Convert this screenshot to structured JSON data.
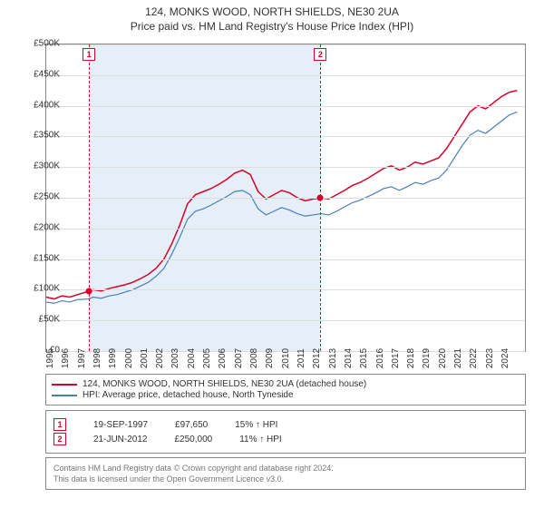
{
  "title_line1": "124, MONKS WOOD, NORTH SHIELDS, NE30 2UA",
  "title_line2": "Price paid vs. HM Land Registry's House Price Index (HPI)",
  "chart": {
    "type": "line",
    "background_color": "#ffffff",
    "shaded_band_color": "#e6eef7",
    "grid_color": "#dddddd",
    "border_color": "#888888",
    "x_years": [
      1995,
      1996,
      1997,
      1998,
      1999,
      2000,
      2001,
      2002,
      2003,
      2004,
      2005,
      2006,
      2007,
      2008,
      2009,
      2010,
      2011,
      2012,
      2013,
      2014,
      2015,
      2016,
      2017,
      2018,
      2019,
      2020,
      2021,
      2022,
      2023,
      2024
    ],
    "x_range": [
      1995,
      2025.5
    ],
    "ylim": [
      0,
      500000
    ],
    "ytick_step": 50000,
    "ytick_labels": [
      "£0",
      "£50K",
      "£100K",
      "£150K",
      "£200K",
      "£250K",
      "£300K",
      "£350K",
      "£400K",
      "£450K",
      "£500K"
    ],
    "label_fontsize": 10,
    "series": [
      {
        "name": "124, MONKS WOOD, NORTH SHIELDS, NE30 2UA (detached house)",
        "color": "#d4002a",
        "line_width": 1.5,
        "data": [
          [
            1995,
            88000
          ],
          [
            1995.5,
            85000
          ],
          [
            1996,
            90000
          ],
          [
            1996.5,
            88000
          ],
          [
            1997,
            92000
          ],
          [
            1997.7,
            97650
          ],
          [
            1998,
            100000
          ],
          [
            1998.5,
            98000
          ],
          [
            1999,
            102000
          ],
          [
            1999.5,
            105000
          ],
          [
            2000,
            108000
          ],
          [
            2000.5,
            112000
          ],
          [
            2001,
            118000
          ],
          [
            2001.5,
            125000
          ],
          [
            2002,
            135000
          ],
          [
            2002.5,
            150000
          ],
          [
            2003,
            175000
          ],
          [
            2003.5,
            205000
          ],
          [
            2004,
            240000
          ],
          [
            2004.5,
            255000
          ],
          [
            2005,
            260000
          ],
          [
            2005.5,
            265000
          ],
          [
            2006,
            272000
          ],
          [
            2006.5,
            280000
          ],
          [
            2007,
            290000
          ],
          [
            2007.5,
            295000
          ],
          [
            2008,
            288000
          ],
          [
            2008.5,
            260000
          ],
          [
            2009,
            248000
          ],
          [
            2009.5,
            255000
          ],
          [
            2010,
            262000
          ],
          [
            2010.5,
            258000
          ],
          [
            2011,
            250000
          ],
          [
            2011.5,
            245000
          ],
          [
            2012,
            248000
          ],
          [
            2012.5,
            250000
          ],
          [
            2013,
            248000
          ],
          [
            2013.5,
            255000
          ],
          [
            2014,
            262000
          ],
          [
            2014.5,
            270000
          ],
          [
            2015,
            275000
          ],
          [
            2015.5,
            282000
          ],
          [
            2016,
            290000
          ],
          [
            2016.5,
            298000
          ],
          [
            2017,
            302000
          ],
          [
            2017.5,
            295000
          ],
          [
            2018,
            300000
          ],
          [
            2018.5,
            308000
          ],
          [
            2019,
            305000
          ],
          [
            2019.5,
            310000
          ],
          [
            2020,
            315000
          ],
          [
            2020.5,
            330000
          ],
          [
            2021,
            350000
          ],
          [
            2021.5,
            370000
          ],
          [
            2022,
            390000
          ],
          [
            2022.5,
            400000
          ],
          [
            2023,
            395000
          ],
          [
            2023.5,
            405000
          ],
          [
            2024,
            415000
          ],
          [
            2024.5,
            422000
          ],
          [
            2025,
            425000
          ]
        ]
      },
      {
        "name": "HPI: Average price, detached house, North Tyneside",
        "color": "#4a7fb5",
        "line_width": 1.2,
        "data": [
          [
            1995,
            80000
          ],
          [
            1995.5,
            78000
          ],
          [
            1996,
            82000
          ],
          [
            1996.5,
            80000
          ],
          [
            1997,
            84000
          ],
          [
            1997.7,
            85000
          ],
          [
            1998,
            88000
          ],
          [
            1998.5,
            86000
          ],
          [
            1999,
            90000
          ],
          [
            1999.5,
            92000
          ],
          [
            2000,
            96000
          ],
          [
            2000.5,
            100000
          ],
          [
            2001,
            106000
          ],
          [
            2001.5,
            112000
          ],
          [
            2002,
            122000
          ],
          [
            2002.5,
            135000
          ],
          [
            2003,
            158000
          ],
          [
            2003.5,
            185000
          ],
          [
            2004,
            215000
          ],
          [
            2004.5,
            228000
          ],
          [
            2005,
            232000
          ],
          [
            2005.5,
            238000
          ],
          [
            2006,
            245000
          ],
          [
            2006.5,
            252000
          ],
          [
            2007,
            260000
          ],
          [
            2007.5,
            262000
          ],
          [
            2008,
            255000
          ],
          [
            2008.5,
            232000
          ],
          [
            2009,
            222000
          ],
          [
            2009.5,
            228000
          ],
          [
            2010,
            234000
          ],
          [
            2010.5,
            230000
          ],
          [
            2011,
            224000
          ],
          [
            2011.5,
            220000
          ],
          [
            2012,
            222000
          ],
          [
            2012.5,
            224000
          ],
          [
            2013,
            222000
          ],
          [
            2013.5,
            228000
          ],
          [
            2014,
            235000
          ],
          [
            2014.5,
            242000
          ],
          [
            2015,
            246000
          ],
          [
            2015.5,
            252000
          ],
          [
            2016,
            258000
          ],
          [
            2016.5,
            265000
          ],
          [
            2017,
            268000
          ],
          [
            2017.5,
            262000
          ],
          [
            2018,
            268000
          ],
          [
            2018.5,
            275000
          ],
          [
            2019,
            272000
          ],
          [
            2019.5,
            278000
          ],
          [
            2020,
            282000
          ],
          [
            2020.5,
            295000
          ],
          [
            2021,
            315000
          ],
          [
            2021.5,
            335000
          ],
          [
            2022,
            352000
          ],
          [
            2022.5,
            360000
          ],
          [
            2023,
            355000
          ],
          [
            2023.5,
            365000
          ],
          [
            2024,
            375000
          ],
          [
            2024.5,
            385000
          ],
          [
            2025,
            390000
          ]
        ]
      }
    ],
    "sale_markers": [
      {
        "n": "1",
        "x": 1997.72,
        "y": 97650,
        "color": "#d4002a"
      },
      {
        "n": "2",
        "x": 2012.47,
        "y": 250000,
        "color": "#d4002a"
      }
    ]
  },
  "legend": {
    "rows": [
      {
        "color": "#d4002a",
        "label": "124, MONKS WOOD, NORTH SHIELDS, NE30 2UA (detached house)"
      },
      {
        "color": "#4a7fb5",
        "label": "HPI: Average price, detached house, North Tyneside"
      }
    ]
  },
  "sales": {
    "rows": [
      {
        "n": "1",
        "date": "19-SEP-1997",
        "price": "£97,650",
        "delta": "15% ↑ HPI",
        "color": "#d4002a"
      },
      {
        "n": "2",
        "date": "21-JUN-2012",
        "price": "£250,000",
        "delta": "11% ↑ HPI",
        "color": "#d4002a"
      }
    ]
  },
  "footer": {
    "line1": "Contains HM Land Registry data © Crown copyright and database right 2024.",
    "line2": "This data is licensed under the Open Government Licence v3.0."
  }
}
